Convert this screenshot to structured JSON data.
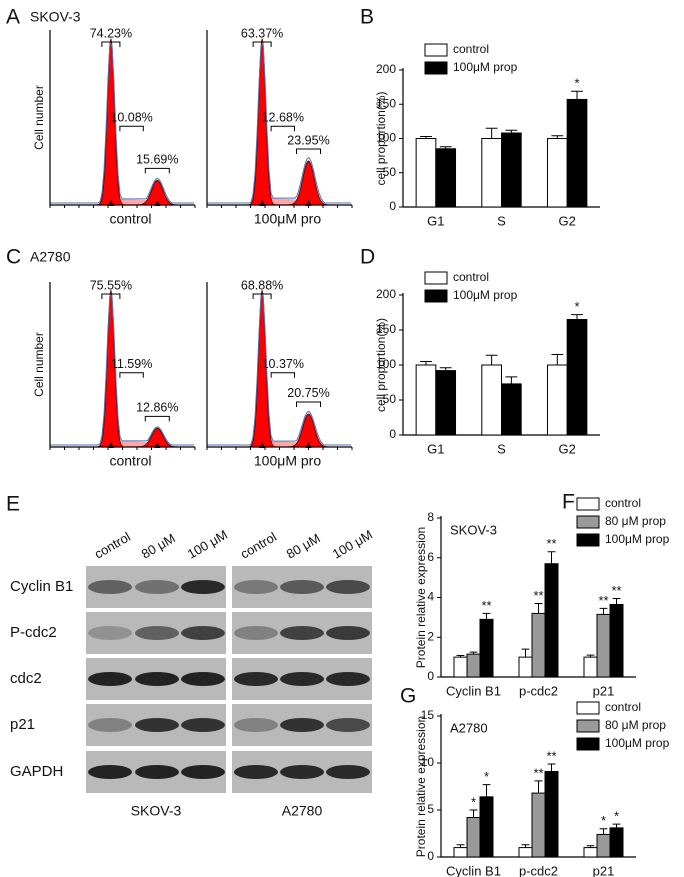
{
  "panel_labels": {
    "a": "A",
    "b": "B",
    "c": "C",
    "d": "D",
    "e": "E",
    "f": "F",
    "g": "G"
  },
  "chart_data": [
    {
      "type": "flow",
      "title": "SKOV-3",
      "y_label": "Cell number",
      "x_label": "control",
      "color": "#ff0000",
      "values": [
        74.23,
        10.08,
        15.69
      ],
      "value_labels": [
        "74.23%",
        "10.08%",
        "15.69%"
      ]
    },
    {
      "type": "flow",
      "x_label": "100μM pro",
      "color": "#ff0000",
      "values": [
        63.37,
        12.68,
        23.95
      ],
      "value_labels": [
        "63.37%",
        "12.68%",
        "23.95%"
      ]
    },
    {
      "type": "flow",
      "title": "A2780",
      "y_label": "Cell number",
      "x_label": "control",
      "color": "#ff0000",
      "values": [
        75.55,
        11.59,
        12.86
      ],
      "value_labels": [
        "75.55%",
        "11.59%",
        "12.86%"
      ]
    },
    {
      "type": "flow",
      "x_label": "100μM pro",
      "color": "#ff0000",
      "values": [
        68.88,
        10.37,
        20.75
      ],
      "value_labels": [
        "68.88%",
        "10.37%",
        "20.75%"
      ]
    },
    {
      "type": "bar",
      "y_label": "cell proportion(%)",
      "categories": [
        "G1",
        "S",
        "G2"
      ],
      "ylim": [
        0,
        200
      ],
      "yticks": [
        0,
        50,
        100,
        150,
        200
      ],
      "series": [
        {
          "name": "control",
          "color": "#ffffff",
          "values": [
            100,
            100,
            100
          ],
          "errors": [
            3,
            15,
            4
          ]
        },
        {
          "name": "100μM prop",
          "color": "#000000",
          "values": [
            85,
            108,
            157
          ],
          "errors": [
            3,
            4,
            12
          ],
          "significance": [
            null,
            null,
            "*"
          ]
        }
      ]
    },
    {
      "type": "bar",
      "y_label": "cell proportion(%)",
      "categories": [
        "G1",
        "S",
        "G2"
      ],
      "ylim": [
        0,
        200
      ],
      "yticks": [
        0,
        50,
        100,
        150,
        200
      ],
      "series": [
        {
          "name": "control",
          "color": "#ffffff",
          "values": [
            100,
            100,
            100
          ],
          "errors": [
            5,
            14,
            15
          ]
        },
        {
          "name": "100μM prop",
          "color": "#000000",
          "values": [
            92,
            73,
            165
          ],
          "errors": [
            4,
            10,
            7
          ],
          "significance": [
            null,
            null,
            "*"
          ]
        }
      ]
    },
    {
      "type": "bar",
      "title": "SKOV-3",
      "y_label": "Protein relative expression",
      "categories": [
        "Cyclin B1",
        "p-cdc2",
        "p21"
      ],
      "ylim": [
        0,
        8
      ],
      "yticks": [
        0,
        2,
        4,
        6,
        8
      ],
      "series": [
        {
          "name": "control",
          "color": "#ffffff",
          "values": [
            1,
            1,
            1
          ],
          "errors": [
            0.08,
            0.4,
            0.1
          ]
        },
        {
          "name": "80 μM prop",
          "color": "#999999",
          "values": [
            1.15,
            3.2,
            3.15
          ],
          "errors": [
            0.1,
            0.5,
            0.3
          ],
          "significance": [
            null,
            "**",
            "**"
          ]
        },
        {
          "name": "100μM prop",
          "color": "#000000",
          "values": [
            2.9,
            5.7,
            3.65
          ],
          "errors": [
            0.3,
            0.6,
            0.3
          ],
          "significance": [
            "**",
            "**",
            "**"
          ]
        }
      ]
    },
    {
      "type": "bar",
      "title": "A2780",
      "y_label": "Protein relative expression",
      "categories": [
        "Cyclin B1",
        "p-cdc2",
        "p21"
      ],
      "ylim": [
        0,
        15
      ],
      "yticks": [
        0,
        5,
        10,
        15
      ],
      "series": [
        {
          "name": "control",
          "color": "#ffffff",
          "values": [
            1,
            1,
            1
          ],
          "errors": [
            0.3,
            0.3,
            0.2
          ]
        },
        {
          "name": "80 μM prop",
          "color": "#999999",
          "values": [
            4.2,
            6.8,
            2.4
          ],
          "errors": [
            0.8,
            1.3,
            0.6
          ],
          "significance": [
            "*",
            "**",
            "*"
          ]
        },
        {
          "name": "100μM prop",
          "color": "#000000",
          "values": [
            6.4,
            9.1,
            3.1
          ],
          "errors": [
            1.3,
            0.8,
            0.4
          ],
          "significance": [
            "*",
            "**",
            "*"
          ]
        }
      ]
    }
  ],
  "blot": {
    "columns": [
      "control",
      "80 μM",
      "100 μM"
    ],
    "rows": [
      "Cyclin B1",
      "P-cdc2",
      "cdc2",
      "p21",
      "GAPDH"
    ],
    "cell_lines": [
      "SKOV-3",
      "A2780"
    ]
  }
}
